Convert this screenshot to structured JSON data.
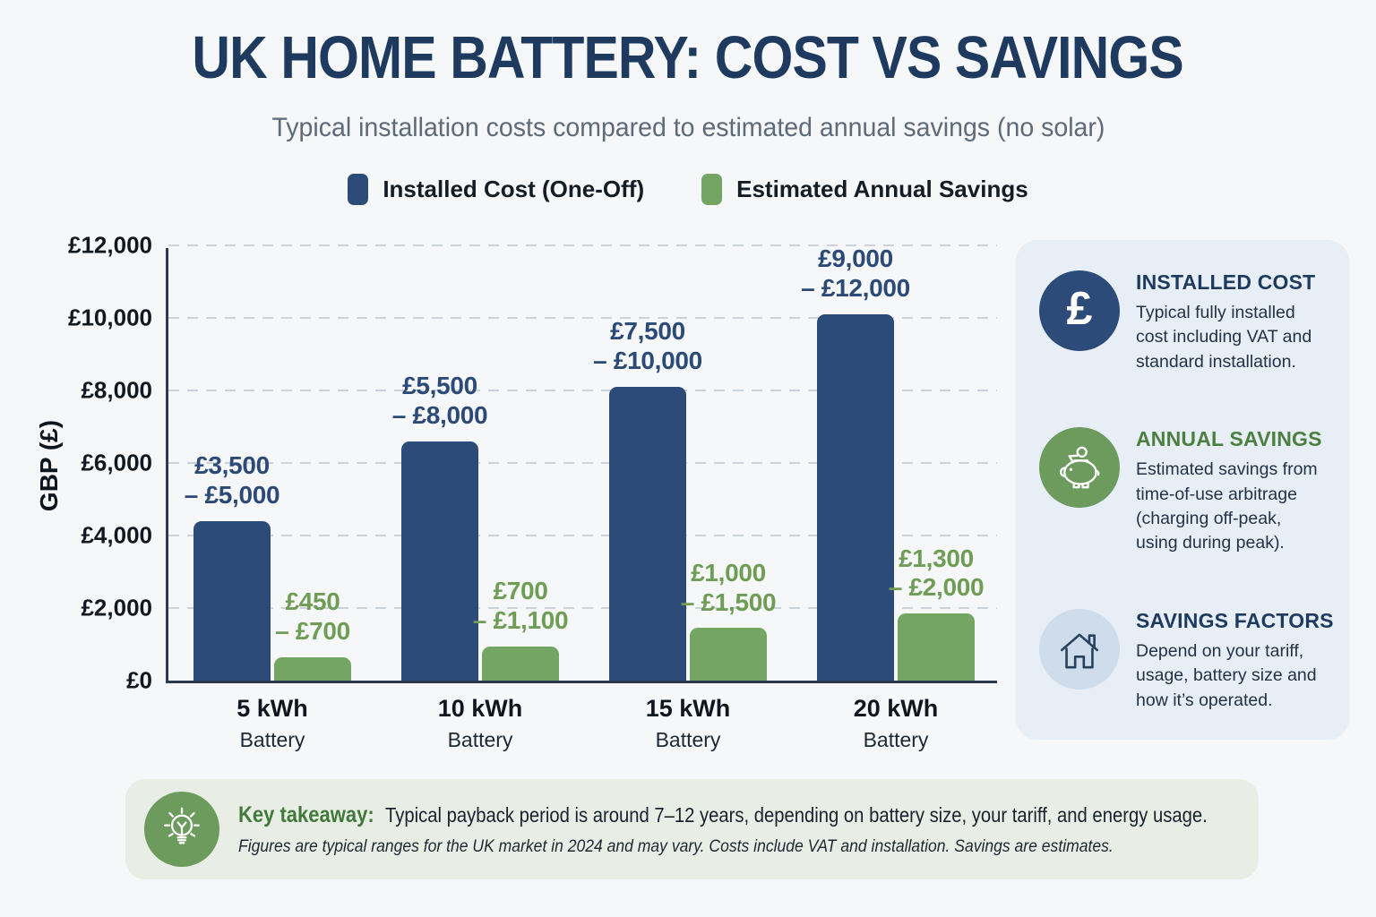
{
  "chart_data": {
    "type": "bar",
    "title": "UK HOME BATTERY: COST VS SAVINGS",
    "subtitle": "Typical installation costs compared to estimated annual savings (no solar)",
    "ylabel": "GBP (£)",
    "ylim": [
      0,
      12000
    ],
    "yticks": [
      0,
      2000,
      4000,
      6000,
      8000,
      10000,
      12000
    ],
    "ytick_labels": [
      "£0",
      "£2,000",
      "£4,000",
      "£6,000",
      "£8,000",
      "£10,000",
      "£12,000"
    ],
    "grid": "horizontal-dashed",
    "legend_position": "top",
    "categories": [
      "5 kWh",
      "10 kWh",
      "15 kWh",
      "20 kWh"
    ],
    "category_sublabel": "Battery",
    "series": [
      {
        "name": "Installed Cost (One-Off)",
        "color": "#2c4b79",
        "label_color": "#2c4a77",
        "bar_values": [
          4400,
          6600,
          8100,
          10100
        ],
        "ranges": [
          [
            3500,
            5000
          ],
          [
            5500,
            8000
          ],
          [
            7500,
            10000
          ],
          [
            9000,
            12000
          ]
        ],
        "range_labels": [
          "£3,500\n– £5,000",
          "£5,500\n– £8,000",
          "£7,500\n– £10,000",
          "£9,000\n– £12,000"
        ]
      },
      {
        "name": "Estimated Annual Savings",
        "color": "#74a562",
        "label_color": "#6f9d55",
        "bar_values": [
          650,
          950,
          1450,
          1850
        ],
        "ranges": [
          [
            450,
            700
          ],
          [
            700,
            1100
          ],
          [
            1000,
            1500
          ],
          [
            1300,
            2000
          ]
        ],
        "range_labels": [
          "£450\n– £700",
          "£700\n– £1,100",
          "£1,000\n– £1,500",
          "£1,300\n– £2,000"
        ]
      }
    ]
  },
  "sidebar": {
    "items": [
      {
        "icon": "pound-icon",
        "title": "INSTALLED COST",
        "body": "Typical fully installed cost including VAT and standard installation."
      },
      {
        "icon": "piggy-bank-icon",
        "title": "ANNUAL SAVINGS",
        "body": "Estimated savings from time-of-use arbitrage (charging off-peak, using during peak)."
      },
      {
        "icon": "house-icon",
        "title": "SAVINGS FACTORS",
        "body": "Depend on your tariff, usage, battery size and how it’s operated."
      }
    ]
  },
  "takeaway": {
    "icon": "lightbulb-icon",
    "label": "Key takeaway:",
    "text": "Typical payback period is around 7–12 years, depending on battery size, your tariff, and energy usage.",
    "footnote": "Figures are typical ranges for the UK market in 2024 and may vary. Costs include VAT and installation. Savings are estimates."
  },
  "colors": {
    "page_bg": "#f6f7f9",
    "title_navy": "#1e3a5e",
    "subtitle_gray": "#5c6a79",
    "bar_blue": "#2c4b79",
    "bar_green": "#74a562",
    "axis": "#2c3a4e",
    "gridline": "#ccd2d9",
    "sidebar_bg": "#e8eef5",
    "sidebar_circle_light": "#cfdcec",
    "green_accent": "#6d9b5e",
    "takeaway_bg": "#e8eee5",
    "takeaway_label_green": "#41793b"
  }
}
